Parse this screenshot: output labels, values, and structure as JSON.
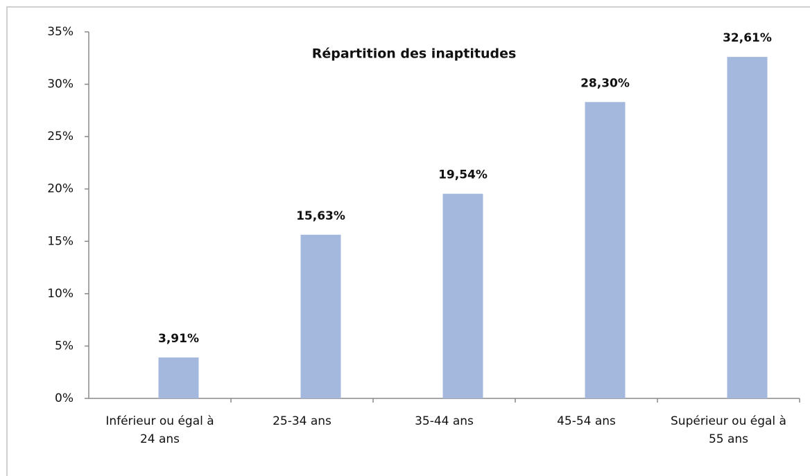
{
  "chart_data": {
    "type": "bar",
    "title": "Répartition des inaptitudes",
    "categories": [
      "Inférieur ou égal à 24 ans",
      "25-34 ans",
      "35-44 ans",
      "45-54 ans",
      "Supérieur ou égal à 55 ans"
    ],
    "values": [
      3.91,
      15.63,
      19.54,
      28.3,
      32.61
    ],
    "value_labels": [
      "3,91%",
      "15,63%",
      "19,54%",
      "28,30%",
      "32,61%"
    ],
    "color": "#a4b8dd",
    "ylim": [
      0,
      35
    ],
    "yticks": [
      {
        "value": 0,
        "label": "0%"
      },
      {
        "value": 5,
        "label": "5%"
      },
      {
        "value": 10,
        "label": "10%"
      },
      {
        "value": 15,
        "label": "15%"
      },
      {
        "value": 20,
        "label": "20%"
      },
      {
        "value": 25,
        "label": "25%"
      },
      {
        "value": 30,
        "label": "30%"
      },
      {
        "value": 35,
        "label": "35%"
      }
    ],
    "grid": false
  }
}
